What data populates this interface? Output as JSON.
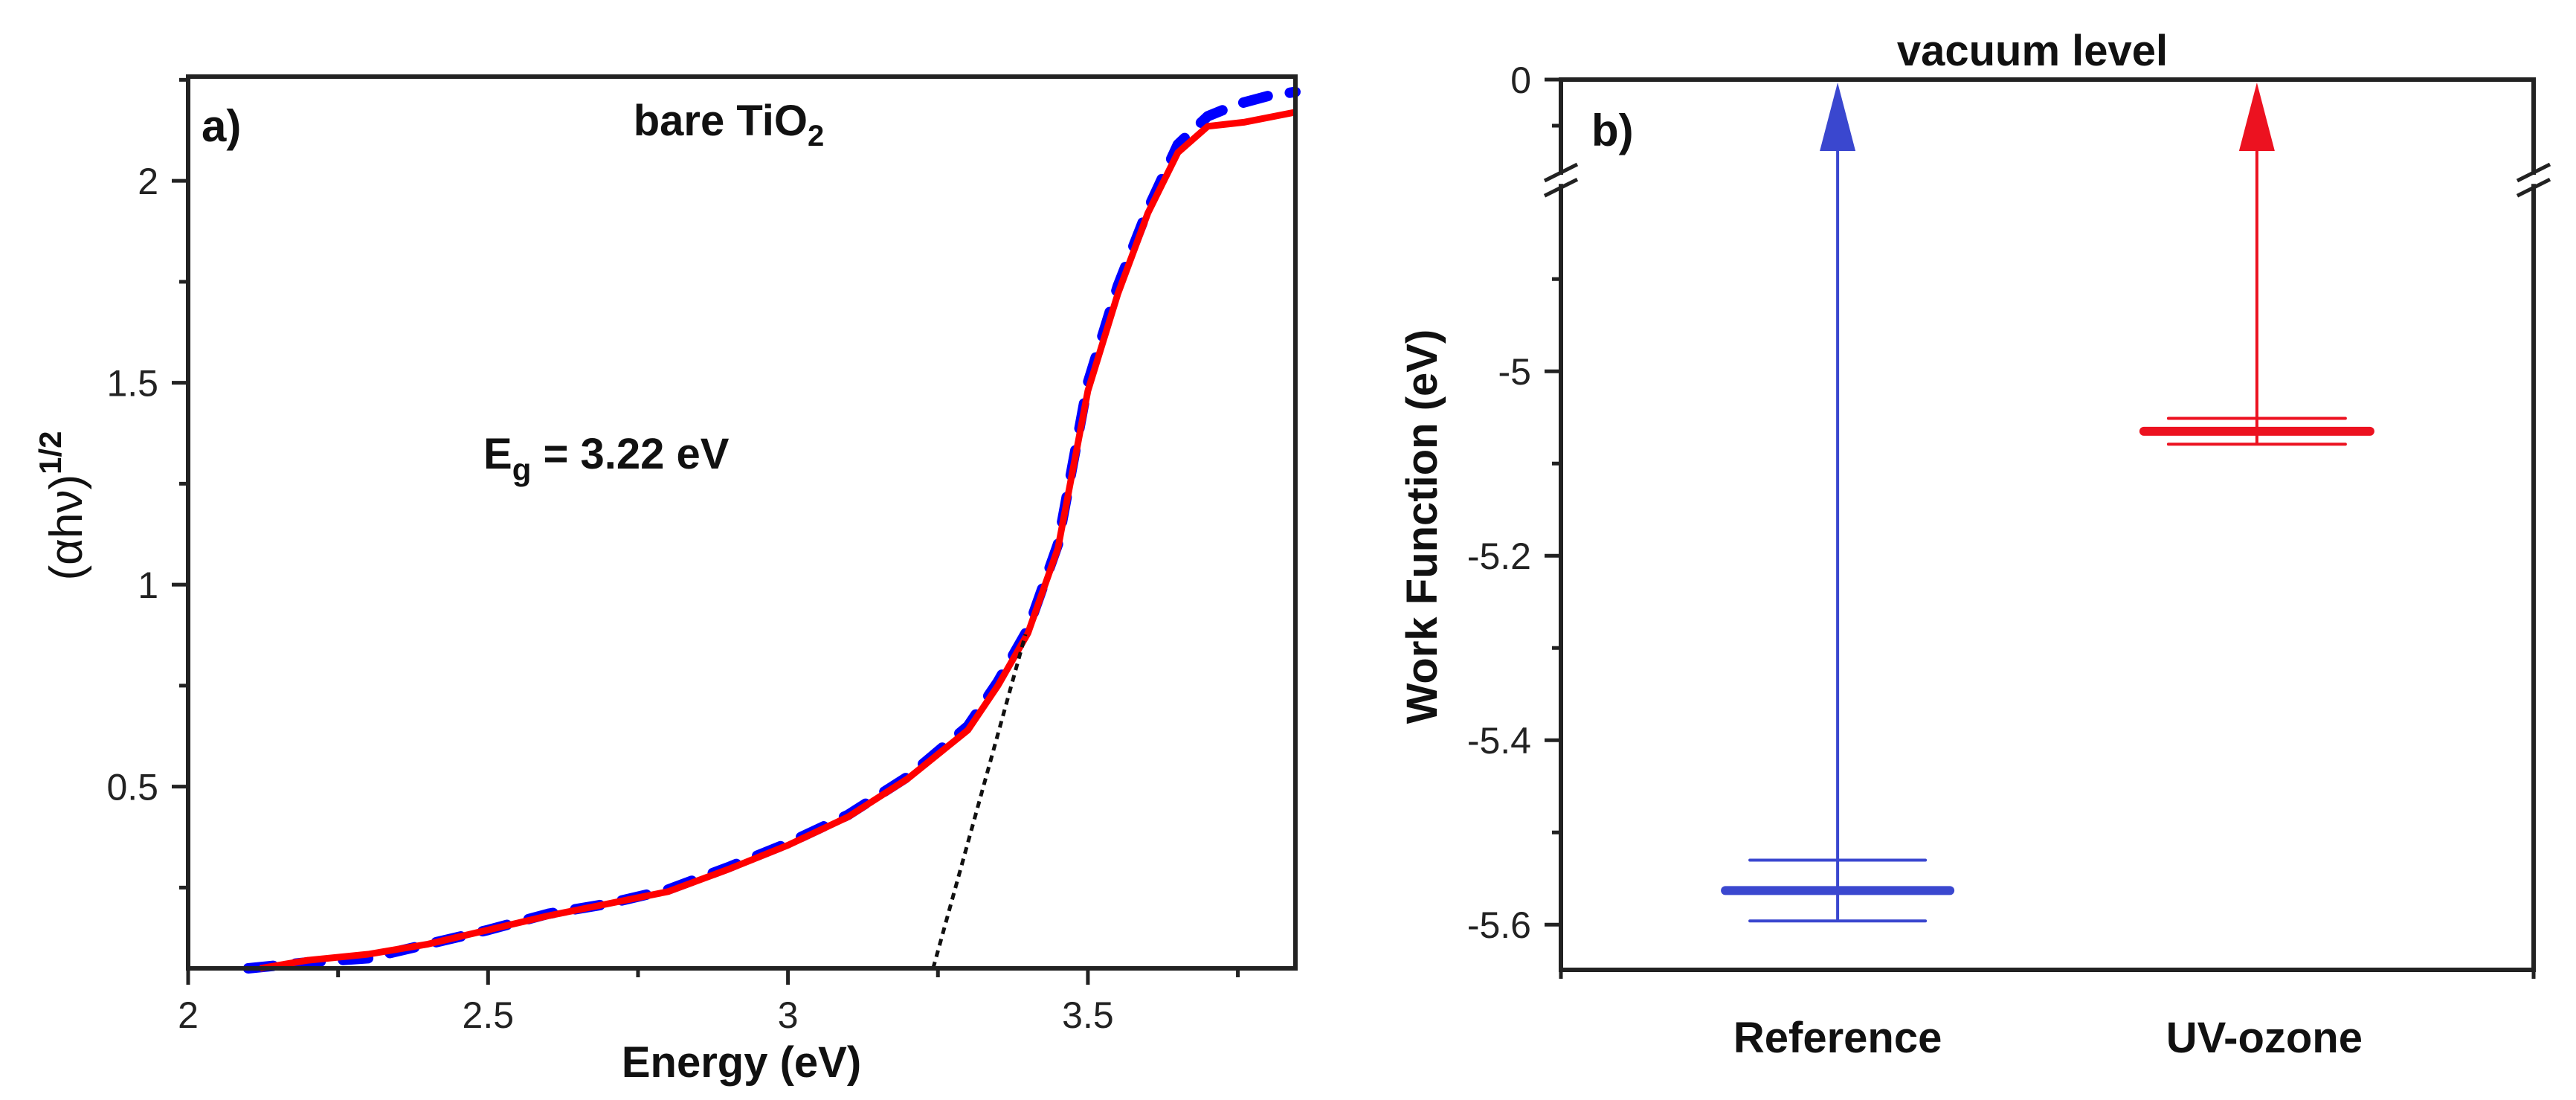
{
  "chart_data": [
    {
      "type": "line",
      "panel_label": "a)",
      "title": "bare TiO",
      "title_subscript": "2",
      "annotation": {
        "prefix": "E",
        "subscript": "g",
        "suffix": " = 3.22 eV"
      },
      "xlabel": "Energy (eV)",
      "ylabel": "(αhν)",
      "ylabel_superscript": "1/2",
      "xlim": [
        2,
        3.846
      ],
      "ylim": [
        0.05,
        2.258
      ],
      "xticks": [
        2,
        2.5,
        3,
        3.5
      ],
      "xtick_labels": [
        "2",
        "2.5",
        "3",
        "3.5"
      ],
      "xminor": [
        2.25,
        2.75,
        3.25,
        3.75
      ],
      "yticks": [
        0.5,
        1,
        1.5,
        2
      ],
      "ytick_labels": [
        "0.5",
        "1",
        "1.5",
        "2"
      ],
      "yminor": [
        0.25,
        0.75,
        1.25,
        1.75,
        2.25
      ],
      "grid": false,
      "series": [
        {
          "name": "blue dashed",
          "style": "dashed",
          "color": "#0000ff",
          "x": [
            2.1,
            2.2,
            2.3,
            2.4,
            2.5,
            2.6,
            2.7,
            2.8,
            2.9,
            3.0,
            3.1,
            3.2,
            3.3,
            3.35,
            3.4,
            3.45,
            3.5,
            3.55,
            3.6,
            3.65,
            3.7,
            3.75,
            3.8,
            3.846
          ],
          "y": [
            0.05,
            0.065,
            0.075,
            0.11,
            0.145,
            0.185,
            0.21,
            0.245,
            0.3,
            0.36,
            0.43,
            0.525,
            0.65,
            0.76,
            0.89,
            1.1,
            1.5,
            1.74,
            1.93,
            2.09,
            2.16,
            2.19,
            2.21,
            2.22
          ]
        },
        {
          "name": "red solid",
          "style": "solid",
          "color": "#ff0000",
          "x": [
            2.12,
            2.2,
            2.3,
            2.4,
            2.5,
            2.6,
            2.7,
            2.8,
            2.9,
            3.0,
            3.1,
            3.2,
            3.3,
            3.35,
            3.4,
            3.45,
            3.5,
            3.55,
            3.6,
            3.65,
            3.7,
            3.76,
            3.846
          ],
          "y": [
            0.05,
            0.07,
            0.085,
            0.11,
            0.145,
            0.18,
            0.21,
            0.24,
            0.295,
            0.355,
            0.425,
            0.52,
            0.64,
            0.75,
            0.88,
            1.09,
            1.48,
            1.72,
            1.92,
            2.07,
            2.135,
            2.145,
            2.17
          ]
        },
        {
          "name": "tangent fit",
          "style": "dotted",
          "color": "#111111",
          "x": [
            3.242,
            3.396
          ],
          "y": [
            0.05,
            0.877
          ]
        }
      ]
    },
    {
      "type": "bar",
      "subtype": "energy-level",
      "panel_label": "b)",
      "title": "vacuum level",
      "ylabel": "Work Function (eV)",
      "categories": [
        "Reference",
        "UV-ozone"
      ],
      "xlim": [
        0.34,
        2.66
      ],
      "ylim_upper_segment": [
        -0.1,
        0
      ],
      "ylim_lower_segment": [
        -5.649,
        -4.8
      ],
      "axis_break": true,
      "yticks": [
        0,
        -5,
        -5.2,
        -5.4,
        -5.6
      ],
      "ytick_labels": [
        "0",
        "-5",
        "-5.2",
        "-5.4",
        "-5.6"
      ],
      "yminor": [
        -0.05,
        -4.9,
        -5.1,
        -5.3,
        -5.5
      ],
      "grid": false,
      "series": [
        {
          "name": "Reference",
          "color": "#3a47cf",
          "value": -5.563,
          "error": 0.033,
          "arrow_to": 0
        },
        {
          "name": "UV-ozone",
          "color": "#ec1220",
          "value": -5.065,
          "error": 0.014,
          "arrow_to": 0
        }
      ]
    }
  ]
}
